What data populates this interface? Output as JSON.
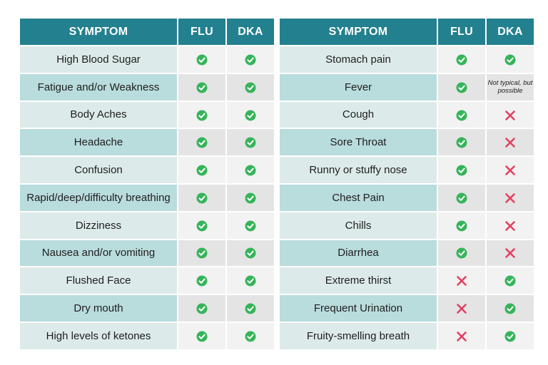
{
  "colors": {
    "header_bg": "#23808f",
    "check": "#36b45a",
    "cross": "#e2415f"
  },
  "tables": [
    {
      "headers": [
        "SYMPTOM",
        "FLU",
        "DKA"
      ],
      "rows": [
        {
          "symptom": "High Blood Sugar",
          "flu": "check",
          "dka": "check"
        },
        {
          "symptom": "Fatigue and/or Weakness",
          "flu": "check",
          "dka": "check"
        },
        {
          "symptom": "Body Aches",
          "flu": "check",
          "dka": "check"
        },
        {
          "symptom": "Headache",
          "flu": "check",
          "dka": "check"
        },
        {
          "symptom": "Confusion",
          "flu": "check",
          "dka": "check"
        },
        {
          "symptom": "Rapid/deep/difficulty breathing",
          "flu": "check",
          "dka": "check"
        },
        {
          "symptom": "Dizziness",
          "flu": "check",
          "dka": "check"
        },
        {
          "symptom": "Nausea and/or vomiting",
          "flu": "check",
          "dka": "check"
        },
        {
          "symptom": "Flushed Face",
          "flu": "check",
          "dka": "check"
        },
        {
          "symptom": "Dry mouth",
          "flu": "check",
          "dka": "check"
        },
        {
          "symptom": "High levels of ketones",
          "flu": "check",
          "dka": "check"
        }
      ]
    },
    {
      "headers": [
        "SYMPTOM",
        "FLU",
        "DKA"
      ],
      "rows": [
        {
          "symptom": "Stomach pain",
          "flu": "check",
          "dka": "check"
        },
        {
          "symptom": "Fever",
          "flu": "check",
          "dka": "Not typical, but possible"
        },
        {
          "symptom": "Cough",
          "flu": "check",
          "dka": "cross"
        },
        {
          "symptom": "Sore Throat",
          "flu": "check",
          "dka": "cross"
        },
        {
          "symptom": "Runny or stuffy nose",
          "flu": "check",
          "dka": "cross"
        },
        {
          "symptom": "Chest Pain",
          "flu": "check",
          "dka": "cross"
        },
        {
          "symptom": "Chills",
          "flu": "check",
          "dka": "cross"
        },
        {
          "symptom": "Diarrhea",
          "flu": "check",
          "dka": "cross"
        },
        {
          "symptom": "Extreme thirst",
          "flu": "cross",
          "dka": "check"
        },
        {
          "symptom": "Frequent Urination",
          "flu": "cross",
          "dka": "check"
        },
        {
          "symptom": "Fruity-smelling breath",
          "flu": "cross",
          "dka": "check"
        }
      ]
    }
  ]
}
